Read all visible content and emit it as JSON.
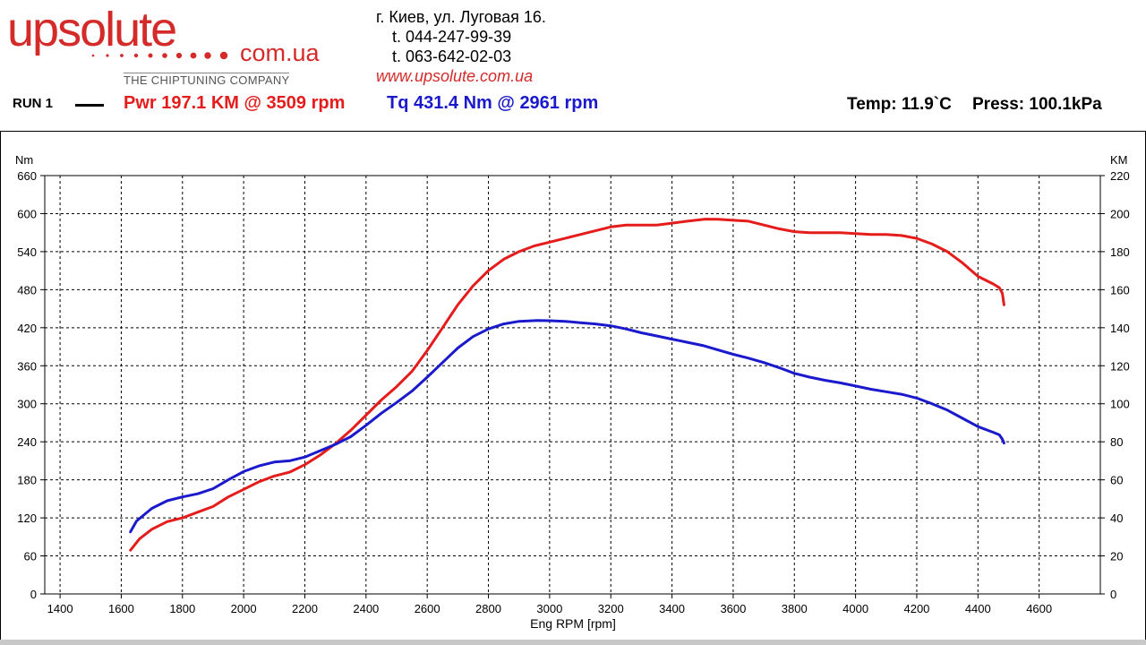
{
  "header": {
    "logo_text": "upsolute",
    "logo_domain": "com.ua",
    "logo_tagline": "THE CHIPTUNING COMPANY",
    "address": "г. Киев, ул. Луговая 16.",
    "phone_1": "t.  044-247-99-39",
    "phone_2": "t.  063-642-02-03",
    "website": "www.upsolute.com.ua",
    "run_label": "RUN 1",
    "power_summary": "Pwr  197.1 KM @ 3509 rpm",
    "torque_summary": "Tq 431.4 Nm @ 2961 rpm",
    "temperature": "Temp: 11.9`C",
    "pressure": "Press: 100.1kPa"
  },
  "colors": {
    "power": "#e51c1c",
    "torque": "#1a1acc",
    "brand": "#d42a2a"
  },
  "chart_data": {
    "type": "line",
    "title": "",
    "xlabel": "Eng RPM [rpm]",
    "ylabel_left": "Nm",
    "ylabel_right": "KM",
    "xlim": [
      1350,
      4800
    ],
    "ylim_left": [
      0,
      660
    ],
    "ylim_right": [
      0,
      220
    ],
    "x_ticks": [
      1400,
      1600,
      1800,
      2000,
      2200,
      2400,
      2600,
      2800,
      3000,
      3200,
      3400,
      3600,
      3800,
      4000,
      4200,
      4400,
      4600
    ],
    "y_ticks_left": [
      0,
      60,
      120,
      180,
      240,
      300,
      360,
      420,
      480,
      540,
      600,
      660
    ],
    "y_ticks_right": [
      0,
      20,
      40,
      60,
      80,
      100,
      120,
      140,
      160,
      180,
      200,
      220
    ],
    "grid": true,
    "series": [
      {
        "name": "Pwr",
        "axis": "right",
        "color": "#e51c1c",
        "points": [
          [
            1630,
            23
          ],
          [
            1660,
            29
          ],
          [
            1700,
            34
          ],
          [
            1750,
            38
          ],
          [
            1800,
            40
          ],
          [
            1850,
            43
          ],
          [
            1900,
            46
          ],
          [
            1950,
            51
          ],
          [
            2000,
            55
          ],
          [
            2050,
            59
          ],
          [
            2100,
            62
          ],
          [
            2150,
            64
          ],
          [
            2200,
            68
          ],
          [
            2250,
            73
          ],
          [
            2300,
            79
          ],
          [
            2350,
            86
          ],
          [
            2400,
            94
          ],
          [
            2450,
            102
          ],
          [
            2500,
            109
          ],
          [
            2550,
            117
          ],
          [
            2600,
            128
          ],
          [
            2650,
            140
          ],
          [
            2700,
            152
          ],
          [
            2750,
            162
          ],
          [
            2800,
            170
          ],
          [
            2850,
            176
          ],
          [
            2900,
            180
          ],
          [
            2950,
            183
          ],
          [
            3000,
            185
          ],
          [
            3050,
            187
          ],
          [
            3100,
            189
          ],
          [
            3150,
            191
          ],
          [
            3200,
            193
          ],
          [
            3250,
            194
          ],
          [
            3300,
            194
          ],
          [
            3350,
            194
          ],
          [
            3400,
            195
          ],
          [
            3450,
            196
          ],
          [
            3509,
            197.1
          ],
          [
            3550,
            197
          ],
          [
            3600,
            196.5
          ],
          [
            3650,
            196
          ],
          [
            3700,
            194
          ],
          [
            3750,
            192
          ],
          [
            3800,
            190.5
          ],
          [
            3850,
            190
          ],
          [
            3900,
            190
          ],
          [
            3950,
            190
          ],
          [
            4000,
            189.5
          ],
          [
            4050,
            189
          ],
          [
            4100,
            189
          ],
          [
            4150,
            188.5
          ],
          [
            4200,
            187
          ],
          [
            4250,
            184
          ],
          [
            4300,
            180
          ],
          [
            4350,
            174
          ],
          [
            4400,
            167
          ],
          [
            4450,
            163
          ],
          [
            4470,
            161
          ],
          [
            4480,
            158
          ],
          [
            4485,
            152
          ]
        ]
      },
      {
        "name": "Tq",
        "axis": "left",
        "color": "#1a1acc",
        "points": [
          [
            1630,
            98
          ],
          [
            1650,
            115
          ],
          [
            1700,
            135
          ],
          [
            1750,
            147
          ],
          [
            1800,
            153
          ],
          [
            1850,
            158
          ],
          [
            1900,
            166
          ],
          [
            1950,
            180
          ],
          [
            2000,
            193
          ],
          [
            2050,
            202
          ],
          [
            2100,
            208
          ],
          [
            2150,
            210
          ],
          [
            2200,
            216
          ],
          [
            2250,
            226
          ],
          [
            2300,
            236
          ],
          [
            2350,
            248
          ],
          [
            2400,
            266
          ],
          [
            2450,
            285
          ],
          [
            2500,
            302
          ],
          [
            2550,
            320
          ],
          [
            2600,
            342
          ],
          [
            2650,
            365
          ],
          [
            2700,
            388
          ],
          [
            2750,
            406
          ],
          [
            2800,
            418
          ],
          [
            2850,
            426
          ],
          [
            2900,
            430
          ],
          [
            2961,
            431.4
          ],
          [
            3000,
            431
          ],
          [
            3050,
            430
          ],
          [
            3100,
            428
          ],
          [
            3150,
            426
          ],
          [
            3200,
            423
          ],
          [
            3250,
            418
          ],
          [
            3300,
            412
          ],
          [
            3350,
            407
          ],
          [
            3400,
            402
          ],
          [
            3450,
            397
          ],
          [
            3500,
            392
          ],
          [
            3550,
            385
          ],
          [
            3600,
            378
          ],
          [
            3650,
            372
          ],
          [
            3700,
            365
          ],
          [
            3750,
            357
          ],
          [
            3800,
            348
          ],
          [
            3850,
            342
          ],
          [
            3900,
            337
          ],
          [
            3950,
            333
          ],
          [
            4000,
            328
          ],
          [
            4050,
            323
          ],
          [
            4100,
            319
          ],
          [
            4150,
            315
          ],
          [
            4200,
            309
          ],
          [
            4250,
            300
          ],
          [
            4300,
            290
          ],
          [
            4350,
            277
          ],
          [
            4400,
            264
          ],
          [
            4450,
            255
          ],
          [
            4470,
            251
          ],
          [
            4480,
            244
          ],
          [
            4485,
            238
          ]
        ]
      }
    ]
  }
}
